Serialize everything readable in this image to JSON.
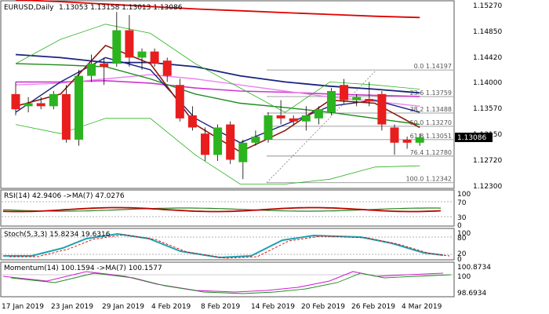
{
  "header": {
    "symbol": "EURUSD,Daily",
    "ohlc": "1.13053 1.13158 1.13013 1.13086"
  },
  "colors": {
    "bull": "#2bb41f",
    "bear": "#e81d1d",
    "ma_short": "#8b1a0e",
    "ma_mid": "#1a237e",
    "ma_green": "#1f8a1f",
    "ma_pink": "#ee82ee",
    "ma_magenta": "#d036d0",
    "ma_red": "#e00000",
    "bands": "#2bb41f",
    "rsi": "#c00000",
    "rsi_ma": "#1f8a1f",
    "stoch_main": "#20a0b0",
    "stoch_signal": "#e00000",
    "momentum": "#d020d0",
    "momentum_ma": "#1f8a1f",
    "fib": "#808080"
  },
  "price_axis": {
    "ticks": [
      "1.15270",
      "1.14850",
      "1.14420",
      "1.14000",
      "1.13570",
      "1.13150",
      "1.12720",
      "1.12300"
    ],
    "current": "1.13086"
  },
  "fib_levels": [
    {
      "label": "0.0 1.14197",
      "value": 1.14197
    },
    {
      "label": "23.6 1.13759",
      "value": 1.13759
    },
    {
      "label": "38.2 1.13488",
      "value": 1.13488
    },
    {
      "label": "50.0 1.13270",
      "value": 1.1327
    },
    {
      "label": "61.8 1.13051",
      "value": 1.13051
    },
    {
      "label": "76.4 1.12780",
      "value": 1.1278
    },
    {
      "label": "100.0 1.12342",
      "value": 1.12342
    }
  ],
  "dates": [
    "17 Jan 2019",
    "23 Jan 2019",
    "29 Jan 2019",
    "4 Feb 2019",
    "8 Feb 2019",
    "14 Feb 2019",
    "20 Feb 2019",
    "26 Feb 2019",
    "4 Mar 2019"
  ],
  "rsi": {
    "label": "RSI(14) 42.9406 ->MA(7) 47.0276",
    "ticks": [
      "100",
      "70",
      "30",
      "0"
    ]
  },
  "stoch": {
    "label": "Stoch(5,3,3) 15.8234 19.6316",
    "ticks": [
      "100",
      "80",
      "20",
      "0"
    ]
  },
  "momentum": {
    "label": "Momentum(14) 100.1594 ->MA(7) 100.1577",
    "ticks": [
      "100.8734",
      "100",
      "98.6934"
    ]
  },
  "chart_data": {
    "type": "candlestick",
    "ylim": [
      1.1225,
      1.153
    ],
    "candles": [
      {
        "o": 1.138,
        "h": 1.14,
        "l": 1.1345,
        "c": 1.1355
      },
      {
        "o": 1.136,
        "h": 1.1375,
        "l": 1.135,
        "c": 1.1365
      },
      {
        "o": 1.1365,
        "h": 1.1375,
        "l": 1.1355,
        "c": 1.136
      },
      {
        "o": 1.136,
        "h": 1.1385,
        "l": 1.1355,
        "c": 1.138
      },
      {
        "o": 1.138,
        "h": 1.1395,
        "l": 1.13,
        "c": 1.1305
      },
      {
        "o": 1.1305,
        "h": 1.142,
        "l": 1.1295,
        "c": 1.141
      },
      {
        "o": 1.141,
        "h": 1.1445,
        "l": 1.14,
        "c": 1.143
      },
      {
        "o": 1.143,
        "h": 1.144,
        "l": 1.1395,
        "c": 1.1425
      },
      {
        "o": 1.143,
        "h": 1.1515,
        "l": 1.1425,
        "c": 1.1485
      },
      {
        "o": 1.1485,
        "h": 1.151,
        "l": 1.1425,
        "c": 1.144
      },
      {
        "o": 1.144,
        "h": 1.1455,
        "l": 1.142,
        "c": 1.145
      },
      {
        "o": 1.145,
        "h": 1.1455,
        "l": 1.1425,
        "c": 1.143
      },
      {
        "o": 1.1435,
        "h": 1.144,
        "l": 1.14,
        "c": 1.141
      },
      {
        "o": 1.1395,
        "h": 1.1405,
        "l": 1.1335,
        "c": 1.134
      },
      {
        "o": 1.1345,
        "h": 1.136,
        "l": 1.132,
        "c": 1.1325
      },
      {
        "o": 1.1315,
        "h": 1.1325,
        "l": 1.127,
        "c": 1.128
      },
      {
        "o": 1.128,
        "h": 1.133,
        "l": 1.127,
        "c": 1.1325
      },
      {
        "o": 1.133,
        "h": 1.1335,
        "l": 1.1265,
        "c": 1.1272
      },
      {
        "o": 1.1268,
        "h": 1.1305,
        "l": 1.124,
        "c": 1.13
      },
      {
        "o": 1.13,
        "h": 1.132,
        "l": 1.1295,
        "c": 1.131
      },
      {
        "o": 1.1305,
        "h": 1.135,
        "l": 1.13,
        "c": 1.1345
      },
      {
        "o": 1.1345,
        "h": 1.137,
        "l": 1.133,
        "c": 1.134
      },
      {
        "o": 1.134,
        "h": 1.1345,
        "l": 1.133,
        "c": 1.1335
      },
      {
        "o": 1.1335,
        "h": 1.136,
        "l": 1.132,
        "c": 1.1345
      },
      {
        "o": 1.134,
        "h": 1.136,
        "l": 1.133,
        "c": 1.1355
      },
      {
        "o": 1.135,
        "h": 1.139,
        "l": 1.1345,
        "c": 1.1385
      },
      {
        "o": 1.1395,
        "h": 1.1405,
        "l": 1.1365,
        "c": 1.137
      },
      {
        "o": 1.137,
        "h": 1.138,
        "l": 1.136,
        "c": 1.1375
      },
      {
        "o": 1.1372,
        "h": 1.14,
        "l": 1.136,
        "c": 1.1368
      },
      {
        "o": 1.138,
        "h": 1.1385,
        "l": 1.132,
        "c": 1.133
      },
      {
        "o": 1.1325,
        "h": 1.133,
        "l": 1.128,
        "c": 1.13
      },
      {
        "o": 1.1305,
        "h": 1.131,
        "l": 1.129,
        "c": 1.13
      },
      {
        "o": 1.13,
        "h": 1.1315,
        "l": 1.1295,
        "c": 1.1309
      }
    ]
  }
}
